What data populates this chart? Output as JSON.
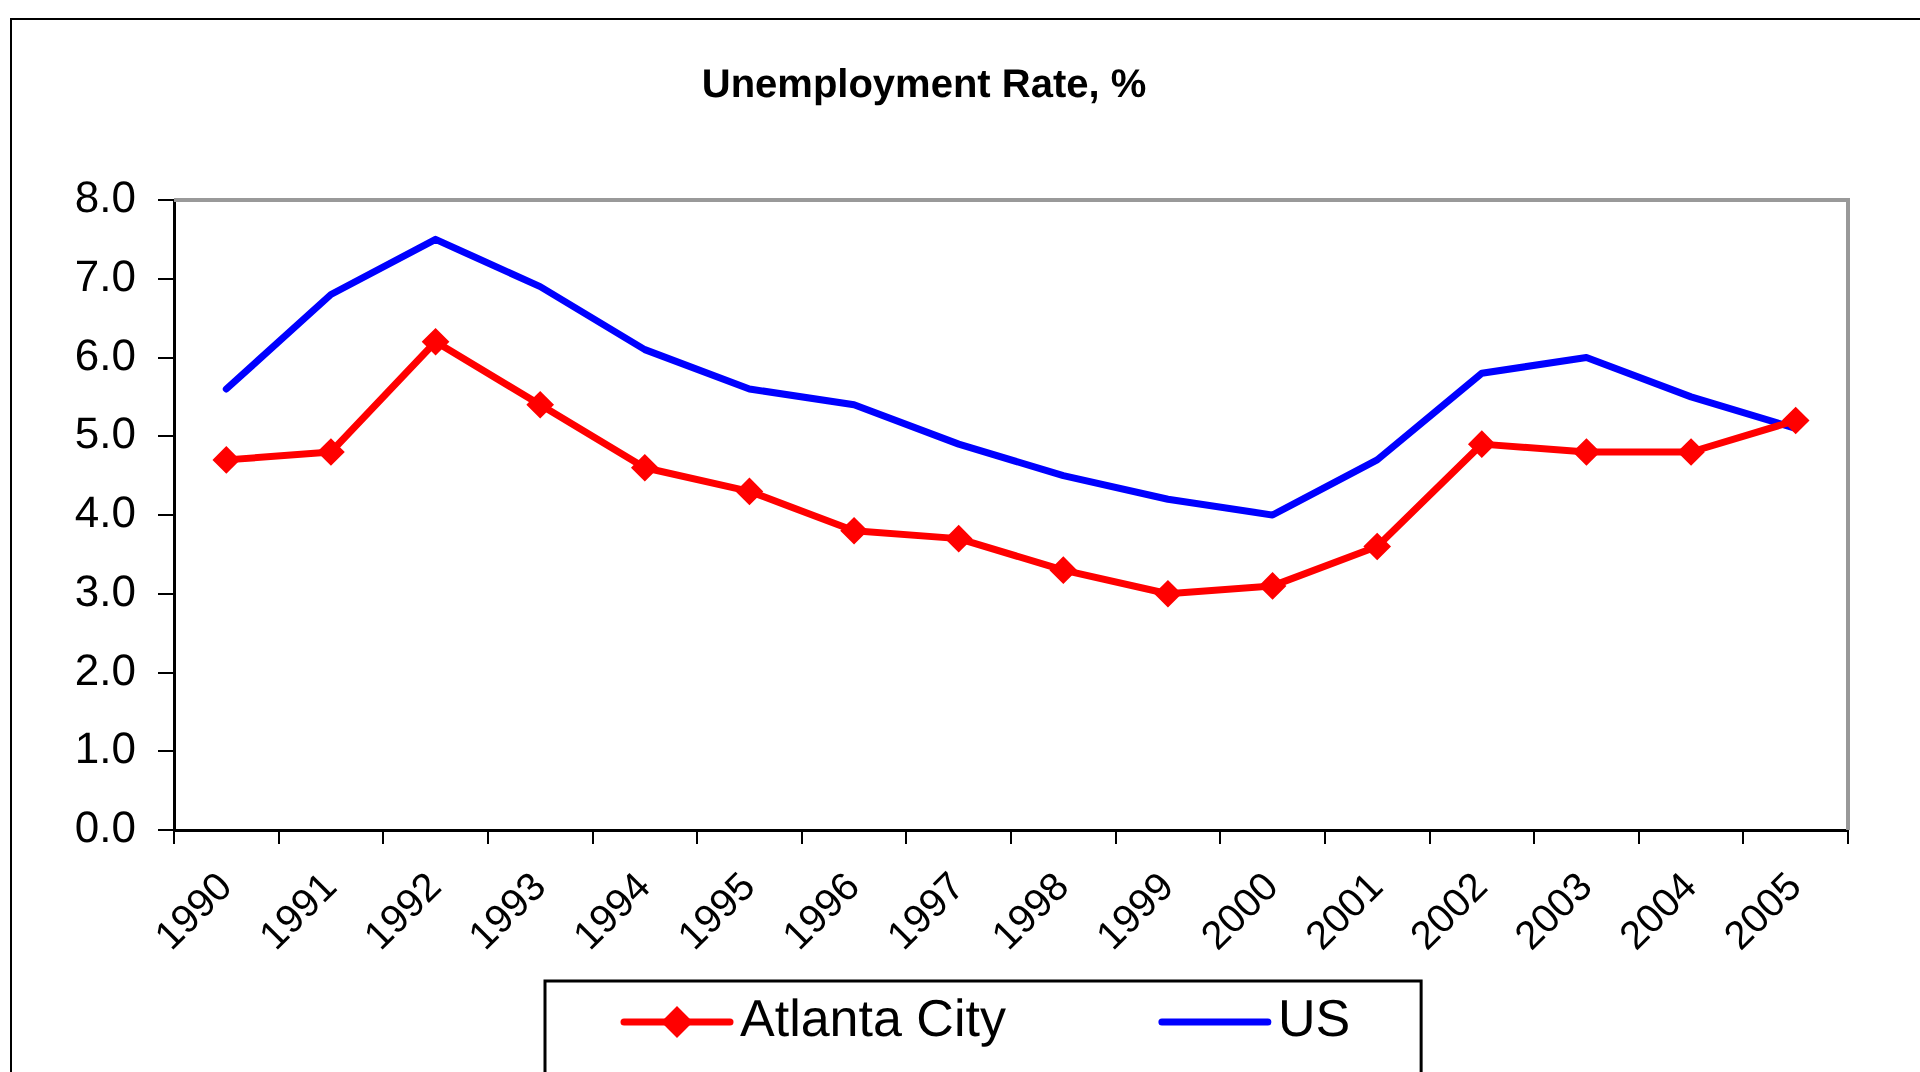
{
  "chart_data": {
    "type": "line",
    "title": "Unemployment Rate, %",
    "categories": [
      "1990",
      "1991",
      "1992",
      "1993",
      "1994",
      "1995",
      "1996",
      "1997",
      "1998",
      "1999",
      "2000",
      "2001",
      "2002",
      "2003",
      "2004",
      "2005"
    ],
    "series": [
      {
        "name": "Atlanta City",
        "color": "#ff0000",
        "marker": "diamond",
        "values": [
          4.7,
          4.8,
          6.2,
          5.4,
          4.6,
          4.3,
          3.8,
          3.7,
          3.3,
          3.0,
          3.1,
          3.6,
          4.9,
          4.8,
          4.8,
          5.2
        ]
      },
      {
        "name": "US",
        "color": "#0000ff",
        "marker": "none",
        "values": [
          5.6,
          6.8,
          7.5,
          6.9,
          6.1,
          5.6,
          5.4,
          4.9,
          4.5,
          4.2,
          4.0,
          4.7,
          5.8,
          6.0,
          5.5,
          5.1
        ]
      }
    ],
    "ylim": [
      0,
      8
    ],
    "yticks": [
      {
        "value": 0,
        "label": "0.0"
      },
      {
        "value": 1,
        "label": "1.0"
      },
      {
        "value": 2,
        "label": "2.0"
      },
      {
        "value": 3,
        "label": "3.0"
      },
      {
        "value": 4,
        "label": "4.0"
      },
      {
        "value": 5,
        "label": "5.0"
      },
      {
        "value": 6,
        "label": "6.0"
      },
      {
        "value": 7,
        "label": "7.0"
      },
      {
        "value": 8,
        "label": "8.0"
      }
    ],
    "grid": false,
    "legend": "bottom"
  }
}
